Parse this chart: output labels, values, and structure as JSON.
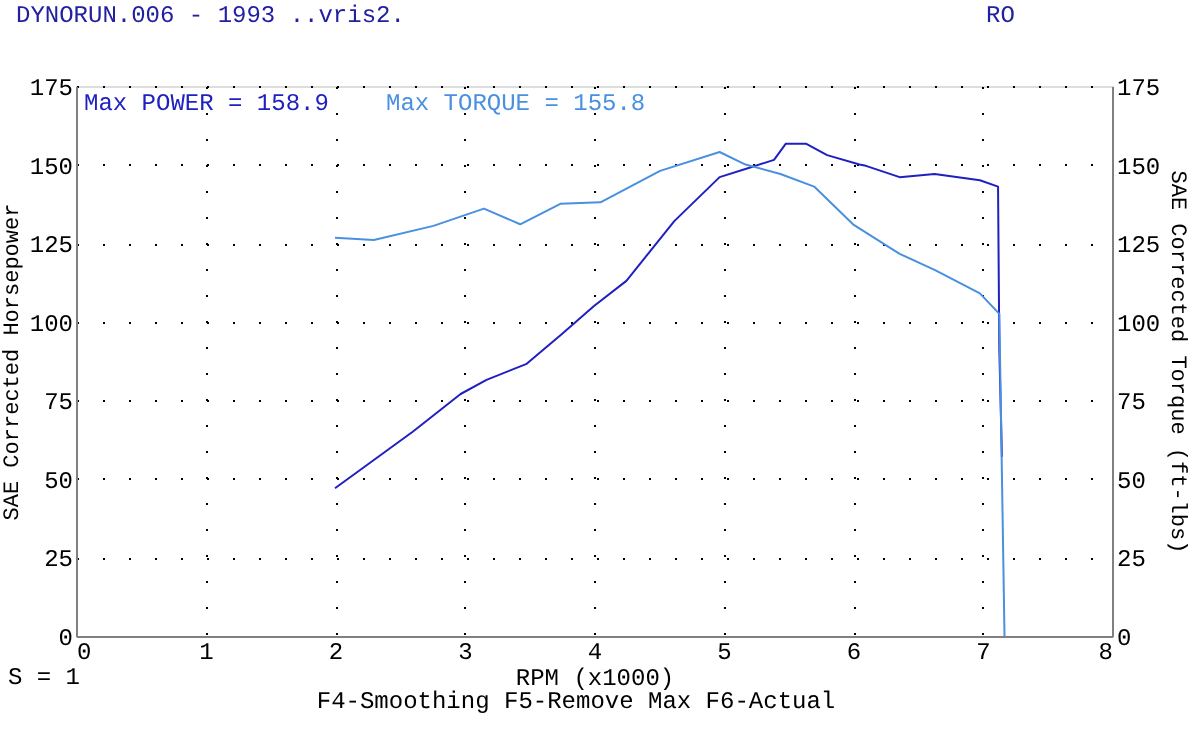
{
  "chart_data": {
    "type": "line",
    "title": "DYNORUN.006 - 1993 ..vris2.",
    "xlabel": "RPM (x1000)",
    "ylabel": "SAE Corrected Horsepower",
    "y2label": "SAE Corrected Torque (ft-lbs)",
    "annotations": [
      "Max POWER = 158.9",
      "Max TORQUE = 155.8",
      "RO",
      "S = 1",
      "F4-Smoothing  F5-Remove Max  F6-Actual"
    ],
    "series": [
      {
        "color": "#2020c0",
        "axis": "y",
        "x": [
          2.0,
          2.3,
          2.6,
          2.97,
          3.17,
          3.48,
          3.75,
          4.0,
          4.25,
          4.62,
          4.97,
          5.2,
          5.39,
          5.48,
          5.59,
          5.64,
          5.8,
          6.05,
          6.1,
          6.36,
          6.63,
          6.98,
          7.12,
          7.13,
          7.15
        ],
        "values": [
          47,
          56,
          65,
          77,
          81.5,
          86.6,
          96,
          105,
          113,
          132,
          146,
          149,
          151.5,
          156.6,
          156.6,
          156.6,
          153,
          150,
          149.6,
          146,
          147,
          145,
          143,
          91,
          57
        ]
      },
      {
        "color": "#4a90e0",
        "axis": "y2",
        "x": [
          2.0,
          2.3,
          2.76,
          3.15,
          3.43,
          3.74,
          4.05,
          4.51,
          4.97,
          5.17,
          5.44,
          5.7,
          6.0,
          6.36,
          6.63,
          6.98,
          7.13,
          7.17
        ],
        "values": [
          126.7,
          126,
          130.5,
          136,
          131,
          137.5,
          138,
          148,
          154,
          150,
          147,
          143,
          131,
          121.6,
          116.5,
          109,
          102.5,
          0
        ]
      }
    ],
    "xlim": [
      0,
      8
    ],
    "xticks": [
      0,
      1,
      2,
      3,
      4,
      5,
      6,
      7,
      8
    ],
    "ylim": [
      0,
      175
    ],
    "yticks": [
      0,
      25,
      50,
      75,
      100,
      125,
      150,
      175
    ],
    "y2lim": [
      0,
      175
    ],
    "y2ticks": [
      0,
      25,
      50,
      75,
      100,
      125,
      150,
      175
    ],
    "grid": true,
    "marker": "none",
    "line_style": "solid"
  }
}
